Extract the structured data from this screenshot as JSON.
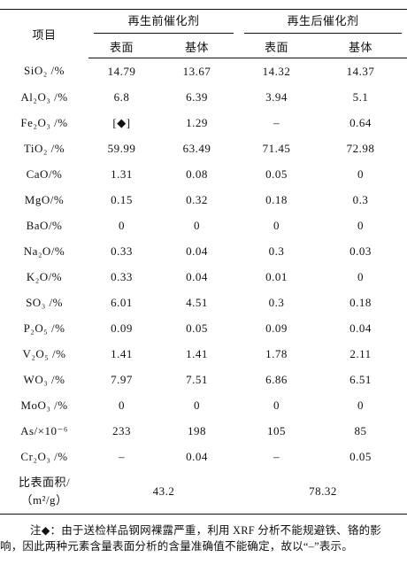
{
  "table": {
    "header": {
      "item": "项目",
      "groups": [
        "再生前催化剂",
        "再生后催化剂"
      ],
      "subs": [
        "表面",
        "基体",
        "表面",
        "基体"
      ]
    },
    "rows": [
      [
        "SiO₂ /%",
        "14.79",
        "13.67",
        "14.32",
        "14.37"
      ],
      [
        "Al₂O₃ /%",
        "6.8",
        "6.39",
        "3.94",
        "5.1"
      ],
      [
        "Fe₂O₃ /%",
        "[◆]",
        "1.29",
        "–",
        "0.64"
      ],
      [
        "TiO₂ /%",
        "59.99",
        "63.49",
        "71.45",
        "72.98"
      ],
      [
        "CaO/%",
        "1.31",
        "0.08",
        "0.05",
        "0"
      ],
      [
        "MgO/%",
        "0.15",
        "0.32",
        "0.18",
        "0.3"
      ],
      [
        "BaO/%",
        "0",
        "0",
        "0",
        "0"
      ],
      [
        "Na₂O/%",
        "0.33",
        "0.04",
        "0.3",
        "0.03"
      ],
      [
        "K₂O/%",
        "0.33",
        "0.04",
        "0.01",
        "0"
      ],
      [
        "SO₃ /%",
        "6.01",
        "4.51",
        "0.3",
        "0.18"
      ],
      [
        "P₂O₅ /%",
        "0.09",
        "0.05",
        "0.09",
        "0.04"
      ],
      [
        "V₂O₅ /%",
        "1.41",
        "1.41",
        "1.78",
        "2.11"
      ],
      [
        "WO₃ /%",
        "7.97",
        "7.51",
        "6.86",
        "6.51"
      ],
      [
        "MoO₃ /%",
        "0",
        "0",
        "0",
        "0"
      ],
      [
        "As/×10⁻⁶",
        "233",
        "198",
        "105",
        "85"
      ],
      [
        "Cr₂O₃ /%",
        "–",
        "0.04",
        "–",
        "0.05"
      ]
    ],
    "surface_area": {
      "label_lines": [
        "比表面积/",
        "（m²/g）"
      ],
      "values": [
        "43.2",
        "78.32"
      ]
    }
  },
  "note": "注◆：由于送检样品钢网裸露严重，利用 XRF 分析不能规避铁、铬的影响，因此两种元素含量表面分析的含量准确值不能确定，故以“–”表示。"
}
